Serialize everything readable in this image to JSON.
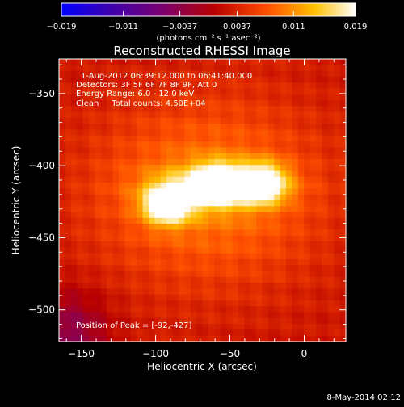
{
  "chart_data": {
    "type": "heatmap",
    "title": "Reconstructed RHESSI Image",
    "xlabel": "Heliocentric X (arcsec)",
    "ylabel": "Heliocentric Y (arcsec)",
    "xlim": [
      -165,
      28
    ],
    "ylim": [
      -522,
      -326
    ],
    "x_ticks": [
      -150,
      -100,
      -50,
      0
    ],
    "y_ticks": [
      -350,
      -400,
      -450,
      -500
    ],
    "x_tick_labels": [
      "−150",
      "−100",
      "−50",
      "0"
    ],
    "y_tick_labels": [
      "−350",
      "−400",
      "−450",
      "−500"
    ],
    "colorbar": {
      "range": [
        -0.019,
        0.019
      ],
      "tick_values": [
        -0.019,
        -0.011,
        -0.0037,
        0.0037,
        0.011,
        0.019
      ],
      "tick_labels": [
        "−0.019",
        "−0.011",
        "−0.0037",
        "0.0037",
        "0.011",
        "0.019"
      ],
      "unit_label": "(photons cm⁻² s⁻¹ asec⁻²)",
      "colors": [
        "#0000ff",
        "#3a00b0",
        "#7a0070",
        "#b80000",
        "#ff5000",
        "#ffc000",
        "#ffffff"
      ]
    },
    "annotations": [
      "1-Aug-2012 06:39:12.000 to 06:41:40.000",
      "Detectors: 3F 5F 6F 7F 8F 9F, Att 0",
      "Energy Range: 6.0 - 12.0 keV",
      "Clean     Total counts: 4.50E+04"
    ],
    "peak_label": "Position of Peak = [-92,-427]",
    "peak": [
      -92,
      -427
    ],
    "sources": [
      {
        "x": -92,
        "y": -427,
        "amplitude": 0.019
      },
      {
        "x": -58,
        "y": -412,
        "amplitude": 0.0165
      },
      {
        "x": -28,
        "y": -412,
        "amplitude": 0.017
      }
    ]
  },
  "footer": {
    "timestamp": "8-May-2014 02:12"
  }
}
